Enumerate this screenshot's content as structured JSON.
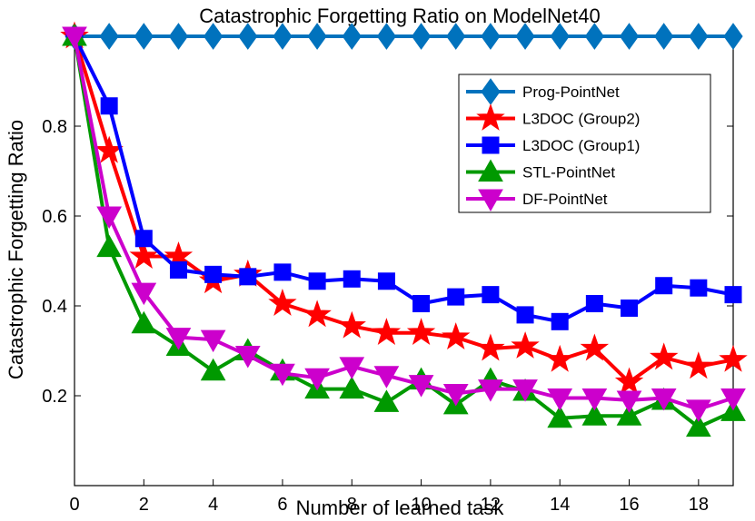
{
  "chart_data": {
    "type": "line",
    "title": "Catastrophic Forgetting Ratio on ModelNet40",
    "xlabel": "Number of learned task",
    "ylabel": "Catastrophic Forgetting Ratio",
    "xlim": [
      0,
      19
    ],
    "ylim": [
      0,
      1
    ],
    "xticks": [
      0,
      2,
      4,
      6,
      8,
      10,
      12,
      14,
      16,
      18
    ],
    "xtick_labels": [
      "0",
      "2",
      "4",
      "6",
      "8",
      "10",
      "12",
      "14",
      "16",
      "18"
    ],
    "yticks": [
      0.2,
      0.4,
      0.6,
      0.8
    ],
    "ytick_labels": [
      "0.2",
      "0.4",
      "0.6",
      "0.8"
    ],
    "legend_position": "top-right",
    "x": [
      0,
      1,
      2,
      3,
      4,
      5,
      6,
      7,
      8,
      9,
      10,
      11,
      12,
      13,
      14,
      15,
      16,
      17,
      18,
      19
    ],
    "series": [
      {
        "name": "Prog-PointNet",
        "color": "#0072BD",
        "marker": "diamond",
        "values": [
          1,
          1,
          1,
          1,
          1,
          1,
          1,
          1,
          1,
          1,
          1,
          1,
          1,
          1,
          1,
          1,
          1,
          1,
          1,
          1
        ]
      },
      {
        "name": "L3DOC (Group2)",
        "color": "#FF0000",
        "marker": "star",
        "values": [
          1,
          0.745,
          0.51,
          0.51,
          0.455,
          0.47,
          0.405,
          0.38,
          0.355,
          0.34,
          0.34,
          0.33,
          0.305,
          0.31,
          0.28,
          0.305,
          0.23,
          0.285,
          0.265,
          0.28
        ]
      },
      {
        "name": "L3DOC (Group1)",
        "color": "#0000FF",
        "marker": "square",
        "values": [
          1,
          0.845,
          0.55,
          0.48,
          0.47,
          0.465,
          0.475,
          0.455,
          0.46,
          0.455,
          0.405,
          0.42,
          0.425,
          0.38,
          0.365,
          0.405,
          0.395,
          0.445,
          0.44,
          0.425
        ]
      },
      {
        "name": "STL-PointNet",
        "color": "#009900",
        "marker": "triangle-up",
        "values": [
          1,
          0.53,
          0.36,
          0.31,
          0.255,
          0.3,
          0.255,
          0.215,
          0.215,
          0.185,
          0.235,
          0.18,
          0.235,
          0.21,
          0.15,
          0.155,
          0.155,
          0.19,
          0.13,
          0.165
        ]
      },
      {
        "name": "DF-PointNet",
        "color": "#CC00CC",
        "marker": "triangle-down",
        "values": [
          1,
          0.6,
          0.43,
          0.33,
          0.325,
          0.29,
          0.25,
          0.24,
          0.265,
          0.245,
          0.225,
          0.205,
          0.215,
          0.215,
          0.195,
          0.195,
          0.19,
          0.195,
          0.17,
          0.195
        ]
      }
    ]
  }
}
